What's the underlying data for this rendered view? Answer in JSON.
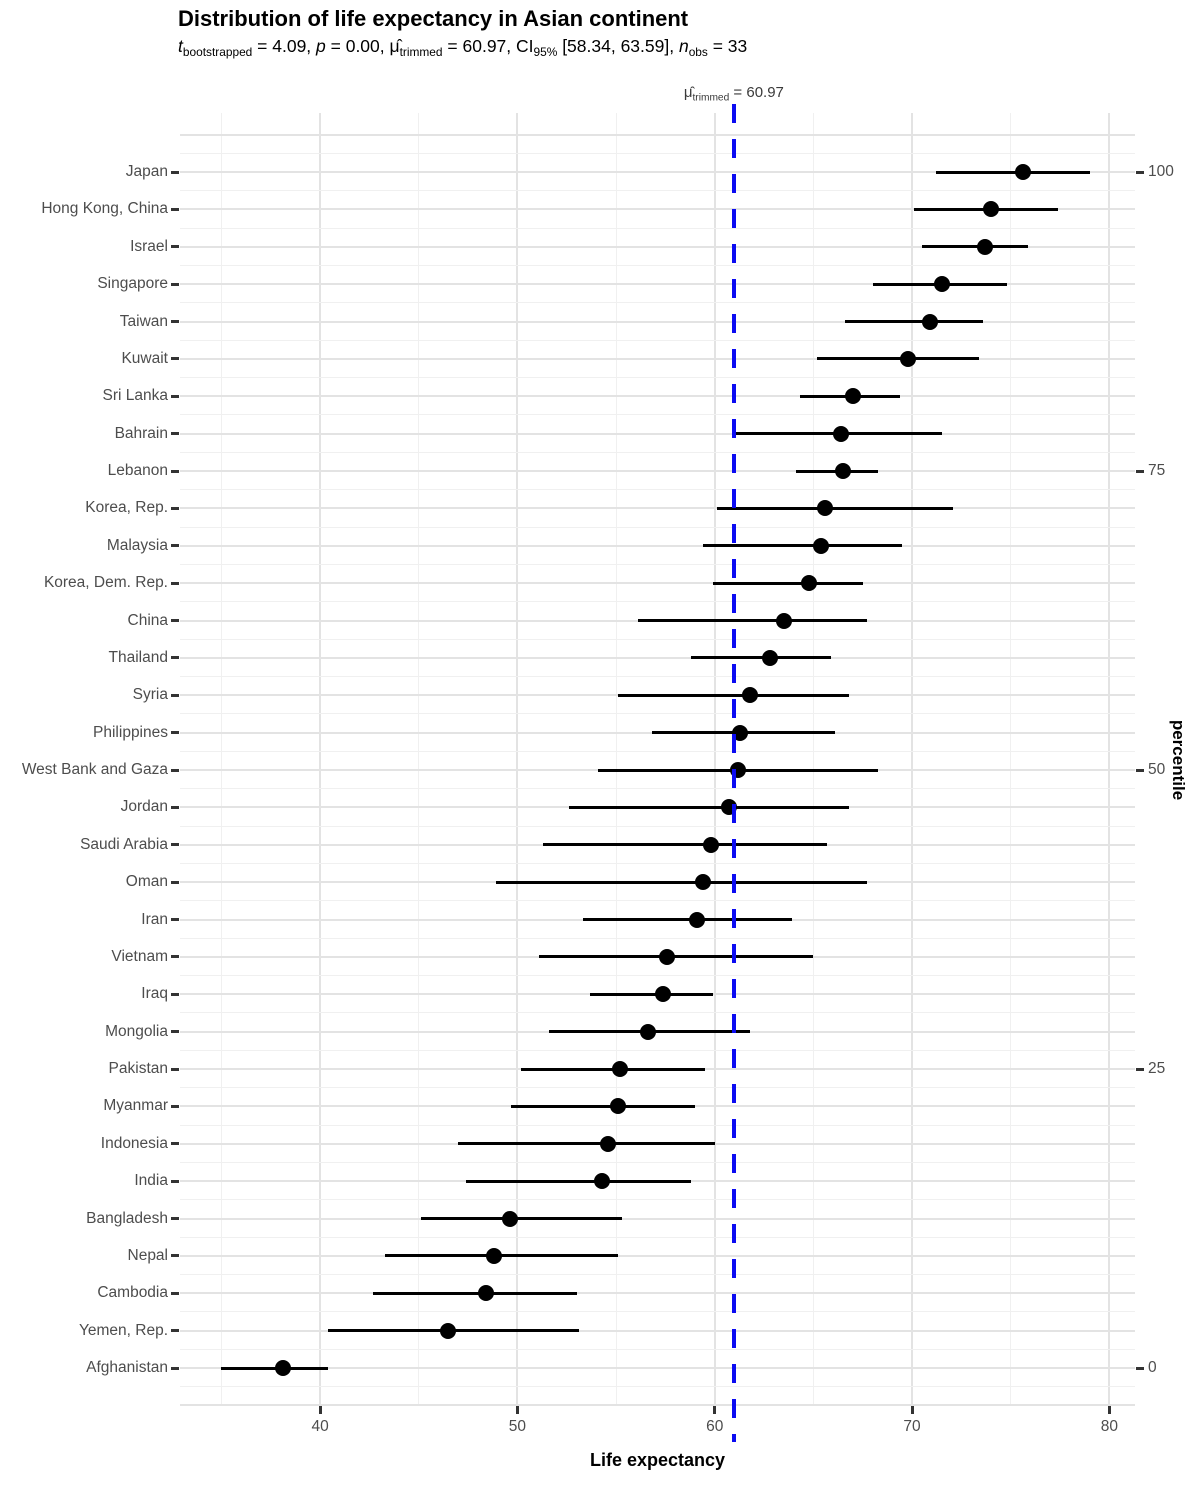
{
  "header": {
    "title": "Distribution of life expectancy in Asian continent",
    "subtitle_parts": [
      {
        "text": "t",
        "style": "italic"
      },
      {
        "text": "bootstrapped",
        "style": "sub"
      },
      {
        "text": " = 4.09, ",
        "style": "normal"
      },
      {
        "text": "p",
        "style": "italic"
      },
      {
        "text": " = 0.00, ",
        "style": "normal"
      },
      {
        "text": "μ̂",
        "style": "normal"
      },
      {
        "text": "trimmed",
        "style": "sub"
      },
      {
        "text": " = 60.97, CI",
        "style": "normal"
      },
      {
        "text": "95%",
        "style": "sub"
      },
      {
        "text": " [58.34, 63.59], ",
        "style": "normal"
      },
      {
        "text": "n",
        "style": "italic"
      },
      {
        "text": "obs",
        "style": "sub"
      },
      {
        "text": " = 33",
        "style": "normal"
      }
    ]
  },
  "annotation": {
    "parts": [
      {
        "text": "μ̂",
        "style": "normal"
      },
      {
        "text": "trimmed",
        "style": "sub"
      },
      {
        "text": " = 60.97",
        "style": "normal"
      }
    ],
    "x_value": 60.97
  },
  "chart_data": {
    "type": "scatter",
    "subtype": "horizontal-dot-plot-with-ci",
    "title": "Distribution of life expectancy in Asian continent",
    "xlabel": "Life expectancy",
    "right_axis_label": "percentile",
    "xlim": [
      32.9,
      81.3
    ],
    "x_major_ticks": [
      40,
      50,
      60,
      70,
      80
    ],
    "x_minor_ticks": [
      35,
      45,
      55,
      65,
      75
    ],
    "reference_line_value": 60.97,
    "grid": true,
    "right_ticks": [
      {
        "label": "100",
        "row_index": 0
      },
      {
        "label": "75",
        "row_index": 8
      },
      {
        "label": "50",
        "row_index": 16
      },
      {
        "label": "25",
        "row_index": 24
      },
      {
        "label": "0",
        "row_index": 32
      }
    ],
    "points": [
      {
        "country": "Japan",
        "value": 75.6,
        "ci_low": 71.2,
        "ci_high": 79.0
      },
      {
        "country": "Hong Kong, China",
        "value": 74.0,
        "ci_low": 70.1,
        "ci_high": 77.4
      },
      {
        "country": "Israel",
        "value": 73.7,
        "ci_low": 70.5,
        "ci_high": 75.9
      },
      {
        "country": "Singapore",
        "value": 71.5,
        "ci_low": 68.0,
        "ci_high": 74.8
      },
      {
        "country": "Taiwan",
        "value": 70.9,
        "ci_low": 66.6,
        "ci_high": 73.6
      },
      {
        "country": "Kuwait",
        "value": 69.8,
        "ci_low": 65.2,
        "ci_high": 73.4
      },
      {
        "country": "Sri Lanka",
        "value": 67.0,
        "ci_low": 64.3,
        "ci_high": 69.4
      },
      {
        "country": "Bahrain",
        "value": 66.4,
        "ci_low": 61.0,
        "ci_high": 71.5
      },
      {
        "country": "Lebanon",
        "value": 66.5,
        "ci_low": 64.1,
        "ci_high": 68.3
      },
      {
        "country": "Korea, Rep.",
        "value": 65.6,
        "ci_low": 60.1,
        "ci_high": 72.1
      },
      {
        "country": "Malaysia",
        "value": 65.4,
        "ci_low": 59.4,
        "ci_high": 69.5
      },
      {
        "country": "Korea, Dem. Rep.",
        "value": 64.8,
        "ci_low": 59.9,
        "ci_high": 67.5
      },
      {
        "country": "China",
        "value": 63.5,
        "ci_low": 56.1,
        "ci_high": 67.7
      },
      {
        "country": "Thailand",
        "value": 62.8,
        "ci_low": 58.8,
        "ci_high": 65.9
      },
      {
        "country": "Syria",
        "value": 61.8,
        "ci_low": 55.1,
        "ci_high": 66.8
      },
      {
        "country": "Philippines",
        "value": 61.3,
        "ci_low": 56.8,
        "ci_high": 66.1
      },
      {
        "country": "West Bank and Gaza",
        "value": 61.2,
        "ci_low": 54.1,
        "ci_high": 68.3
      },
      {
        "country": "Jordan",
        "value": 60.7,
        "ci_low": 52.6,
        "ci_high": 66.8
      },
      {
        "country": "Saudi Arabia",
        "value": 59.8,
        "ci_low": 51.3,
        "ci_high": 65.7
      },
      {
        "country": "Oman",
        "value": 59.4,
        "ci_low": 48.9,
        "ci_high": 67.7
      },
      {
        "country": "Iran",
        "value": 59.1,
        "ci_low": 53.3,
        "ci_high": 63.9
      },
      {
        "country": "Vietnam",
        "value": 57.6,
        "ci_low": 51.1,
        "ci_high": 65.0
      },
      {
        "country": "Iraq",
        "value": 57.4,
        "ci_low": 53.7,
        "ci_high": 59.9
      },
      {
        "country": "Mongolia",
        "value": 56.6,
        "ci_low": 51.6,
        "ci_high": 61.8
      },
      {
        "country": "Pakistan",
        "value": 55.2,
        "ci_low": 50.2,
        "ci_high": 59.5
      },
      {
        "country": "Myanmar",
        "value": 55.1,
        "ci_low": 49.7,
        "ci_high": 59.0
      },
      {
        "country": "Indonesia",
        "value": 54.6,
        "ci_low": 47.0,
        "ci_high": 60.0
      },
      {
        "country": "India",
        "value": 54.3,
        "ci_low": 47.4,
        "ci_high": 58.8
      },
      {
        "country": "Bangladesh",
        "value": 49.6,
        "ci_low": 45.1,
        "ci_high": 55.3
      },
      {
        "country": "Nepal",
        "value": 48.8,
        "ci_low": 43.3,
        "ci_high": 55.1
      },
      {
        "country": "Cambodia",
        "value": 48.4,
        "ci_low": 42.7,
        "ci_high": 53.0
      },
      {
        "country": "Yemen, Rep.",
        "value": 46.5,
        "ci_low": 40.4,
        "ci_high": 53.1
      },
      {
        "country": "Afghanistan",
        "value": 38.1,
        "ci_low": 35.0,
        "ci_high": 40.4
      }
    ],
    "styles": {
      "point_color": "#000000",
      "ci_color": "#000000",
      "reference_line_color": "#0b0bf2",
      "grid_major_color": "#e3e3e3",
      "grid_minor_color": "#f0f0f0",
      "tick_color": "#333333",
      "tick_label_color": "#4d4d4d"
    }
  }
}
